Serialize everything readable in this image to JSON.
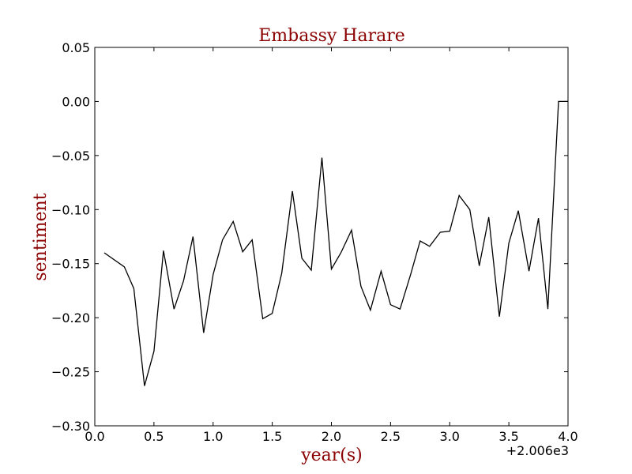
{
  "chart_data": {
    "type": "line",
    "title": "Embassy Harare",
    "xlabel": "year(s)",
    "ylabel": "sentiment",
    "x_offset_label": "+2.006e3",
    "xlim": [
      0.0,
      4.0
    ],
    "ylim": [
      -0.3,
      0.05
    ],
    "x_ticks": [
      0.0,
      0.5,
      1.0,
      1.5,
      2.0,
      2.5,
      3.0,
      3.5,
      4.0
    ],
    "x_tick_labels": [
      "0.0",
      "0.5",
      "1.0",
      "1.5",
      "2.0",
      "2.5",
      "3.0",
      "3.5",
      "4.0"
    ],
    "y_ticks": [
      0.05,
      0.0,
      -0.05,
      -0.1,
      -0.15,
      -0.2,
      -0.25,
      -0.3
    ],
    "y_tick_labels": [
      "0.05",
      "0.00",
      "−0.05",
      "−0.10",
      "−0.15",
      "−0.20",
      "−0.25",
      "−0.30"
    ],
    "grid": false,
    "line_color": "#000000",
    "title_color": "#8b0000",
    "series": [
      {
        "x": [
          0.08,
          0.25,
          0.33,
          0.42,
          0.5,
          0.58,
          0.67,
          0.75,
          0.83,
          0.92,
          1.0,
          1.08,
          1.17,
          1.25,
          1.33,
          1.42,
          1.5,
          1.58,
          1.67,
          1.75,
          1.83,
          1.92,
          2.0,
          2.08,
          2.17,
          2.25,
          2.33,
          2.42,
          2.5,
          2.58,
          2.67,
          2.75,
          2.83,
          2.92,
          3.0,
          3.08,
          3.17,
          3.25,
          3.33,
          3.42,
          3.5,
          3.58,
          3.67,
          3.75,
          3.83,
          3.92,
          4.0
        ],
        "y": [
          -0.14,
          -0.153,
          -0.173,
          -0.263,
          -0.231,
          -0.138,
          -0.192,
          -0.166,
          -0.125,
          -0.214,
          -0.16,
          -0.128,
          -0.111,
          -0.139,
          -0.128,
          -0.201,
          -0.196,
          -0.159,
          -0.083,
          -0.145,
          -0.156,
          -0.052,
          -0.155,
          -0.14,
          -0.119,
          -0.171,
          -0.193,
          -0.157,
          -0.188,
          -0.192,
          -0.16,
          -0.129,
          -0.134,
          -0.121,
          -0.12,
          -0.087,
          -0.1,
          -0.152,
          -0.107,
          -0.199,
          -0.131,
          -0.101,
          -0.157,
          -0.108,
          -0.192,
          0.0,
          0.0
        ]
      }
    ]
  }
}
